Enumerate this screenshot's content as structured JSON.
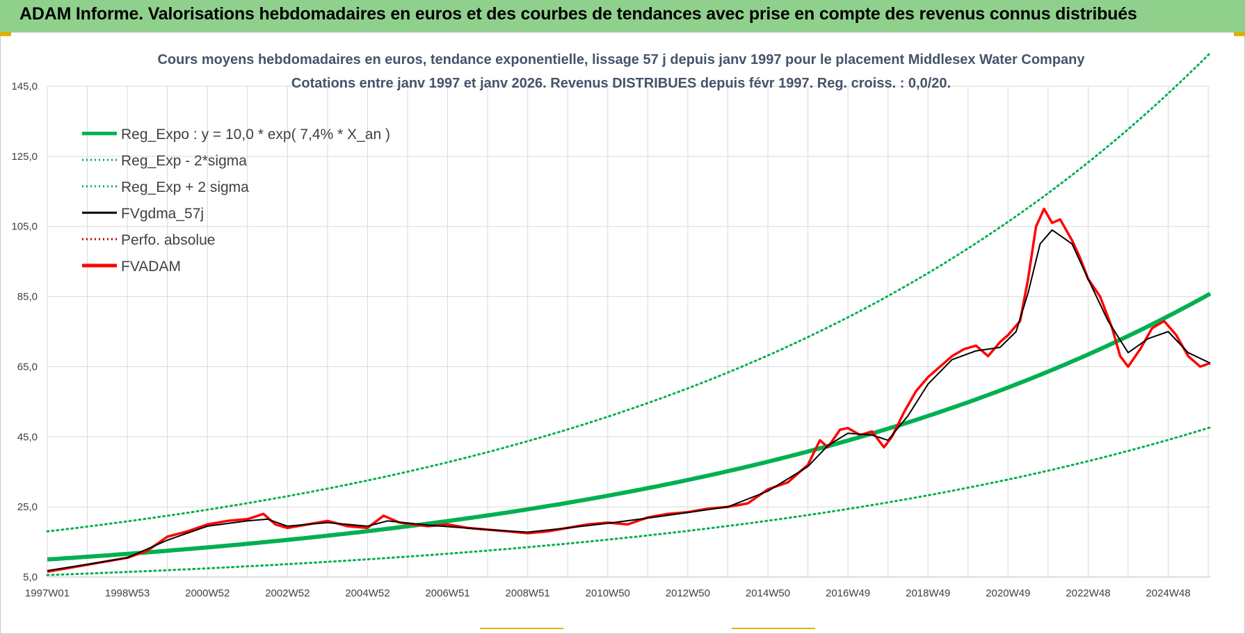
{
  "banner": {
    "title": "ADAM Informe. Valorisations hebdomadaires en euros et des courbes de tendances avec prise en compte des revenus connus distribués",
    "background": "#8fd18c"
  },
  "chart_data": {
    "type": "line",
    "title_line1": "Cours moyens hebdomadaires en euros, tendance exponentielle, lissage 57 j depuis janv 1997 pour le placement Middlesex Water Company",
    "title_line2": "Cotations entre janv 1997 et janv 2026. Revenus DISTRIBUES depuis févr 1997. Reg. croiss. : 0,0/20.",
    "xlabel": "",
    "ylabel": "",
    "x_range": [
      1997.0,
      2026.05
    ],
    "ylim": [
      5,
      145
    ],
    "y_ticks": [
      "5,0",
      "25,0",
      "45,0",
      "65,0",
      "85,0",
      "105,0",
      "125,0",
      "145,0"
    ],
    "x_tick_labels": [
      {
        "label": "1997W01",
        "x": 1997.0
      },
      {
        "label": "1998W53",
        "x": 1999.0
      },
      {
        "label": "2000W52",
        "x": 2001.0
      },
      {
        "label": "2002W52",
        "x": 2003.0
      },
      {
        "label": "2004W52",
        "x": 2005.0
      },
      {
        "label": "2006W51",
        "x": 2007.0
      },
      {
        "label": "2008W51",
        "x": 2009.0
      },
      {
        "label": "2010W50",
        "x": 2011.0
      },
      {
        "label": "2012W50",
        "x": 2013.0
      },
      {
        "label": "2014W50",
        "x": 2015.0
      },
      {
        "label": "2016W49",
        "x": 2017.0
      },
      {
        "label": "2018W49",
        "x": 2019.0
      },
      {
        "label": "2020W49",
        "x": 2021.0
      },
      {
        "label": "2022W48",
        "x": 2023.0
      },
      {
        "label": "2024W48",
        "x": 2025.0
      }
    ],
    "regression": {
      "coef": 10.0,
      "rate": 0.074,
      "start": 1997.0,
      "band_factor": 1.8
    },
    "legend": [
      {
        "label": "Reg_Expo : y = 10,0 * exp( 7,4% *  X_an )",
        "color": "#00b050",
        "style": "solid-thick"
      },
      {
        "label": "Reg_Exp - 2*sigma",
        "color": "#00b050",
        "style": "dotted"
      },
      {
        "label": "Reg_Exp + 2 sigma",
        "color": "#00b050",
        "style": "dotted"
      },
      {
        "label": "FVgdma_57j",
        "color": "#000000",
        "style": "solid"
      },
      {
        "label": "Perfo. absolue",
        "color": "#c00000",
        "style": "dotted"
      },
      {
        "label": "FVADAM",
        "color": "#ff0000",
        "style": "solid-thick"
      }
    ],
    "series": [
      {
        "name": "FVADAM",
        "color": "#ff0000",
        "points": [
          [
            1997.0,
            6.5
          ],
          [
            1997.5,
            7.5
          ],
          [
            1998.0,
            8.5
          ],
          [
            1998.5,
            9.5
          ],
          [
            1999.0,
            10.5
          ],
          [
            1999.5,
            12.5
          ],
          [
            2000.0,
            16.5
          ],
          [
            2000.5,
            18.0
          ],
          [
            2001.0,
            20.0
          ],
          [
            2001.5,
            21.0
          ],
          [
            2002.0,
            21.5
          ],
          [
            2002.4,
            23.0
          ],
          [
            2002.7,
            20.0
          ],
          [
            2003.0,
            19.0
          ],
          [
            2003.5,
            20.0
          ],
          [
            2004.0,
            21.0
          ],
          [
            2004.5,
            19.5
          ],
          [
            2005.0,
            19.0
          ],
          [
            2005.4,
            22.5
          ],
          [
            2005.8,
            20.5
          ],
          [
            2006.5,
            19.5
          ],
          [
            2007.0,
            20.0
          ],
          [
            2007.5,
            19.0
          ],
          [
            2008.0,
            18.5
          ],
          [
            2008.5,
            18.0
          ],
          [
            2009.0,
            17.5
          ],
          [
            2009.5,
            18.0
          ],
          [
            2010.0,
            19.0
          ],
          [
            2010.5,
            20.0
          ],
          [
            2011.0,
            20.5
          ],
          [
            2011.5,
            20.0
          ],
          [
            2012.0,
            22.0
          ],
          [
            2012.5,
            23.0
          ],
          [
            2013.0,
            23.5
          ],
          [
            2013.5,
            24.5
          ],
          [
            2014.0,
            25.0
          ],
          [
            2014.5,
            26.0
          ],
          [
            2015.0,
            30.0
          ],
          [
            2015.5,
            32.0
          ],
          [
            2016.0,
            37.0
          ],
          [
            2016.3,
            44.0
          ],
          [
            2016.5,
            42.0
          ],
          [
            2016.8,
            47.0
          ],
          [
            2017.0,
            47.5
          ],
          [
            2017.3,
            45.5
          ],
          [
            2017.6,
            46.5
          ],
          [
            2017.9,
            42.0
          ],
          [
            2018.1,
            45.0
          ],
          [
            2018.4,
            52.0
          ],
          [
            2018.7,
            58.0
          ],
          [
            2019.0,
            62.0
          ],
          [
            2019.3,
            65.0
          ],
          [
            2019.6,
            68.0
          ],
          [
            2019.9,
            70.0
          ],
          [
            2020.2,
            71.0
          ],
          [
            2020.5,
            68.0
          ],
          [
            2020.8,
            72.0
          ],
          [
            2021.0,
            74.0
          ],
          [
            2021.3,
            78.0
          ],
          [
            2021.5,
            90.0
          ],
          [
            2021.7,
            105.0
          ],
          [
            2021.9,
            110.0
          ],
          [
            2022.1,
            106.0
          ],
          [
            2022.3,
            107.0
          ],
          [
            2022.6,
            101.0
          ],
          [
            2022.8,
            96.0
          ],
          [
            2023.0,
            90.0
          ],
          [
            2023.3,
            85.0
          ],
          [
            2023.6,
            76.0
          ],
          [
            2023.8,
            68.0
          ],
          [
            2024.0,
            65.0
          ],
          [
            2024.3,
            70.0
          ],
          [
            2024.6,
            76.0
          ],
          [
            2024.9,
            78.0
          ],
          [
            2025.2,
            74.0
          ],
          [
            2025.5,
            68.0
          ],
          [
            2025.8,
            65.0
          ],
          [
            2026.05,
            66.0
          ]
        ]
      },
      {
        "name": "FVgdma_57j",
        "color": "#000000",
        "points": [
          [
            1997.0,
            6.8
          ],
          [
            1998.0,
            8.6
          ],
          [
            1999.0,
            10.5
          ],
          [
            2000.0,
            15.5
          ],
          [
            2001.0,
            19.5
          ],
          [
            2002.0,
            21.0
          ],
          [
            2002.5,
            21.5
          ],
          [
            2003.0,
            19.5
          ],
          [
            2004.0,
            20.5
          ],
          [
            2005.0,
            19.5
          ],
          [
            2005.5,
            21.0
          ],
          [
            2006.5,
            19.8
          ],
          [
            2008.0,
            18.5
          ],
          [
            2009.0,
            17.8
          ],
          [
            2010.0,
            19.0
          ],
          [
            2011.0,
            20.3
          ],
          [
            2012.0,
            21.8
          ],
          [
            2013.0,
            23.4
          ],
          [
            2014.0,
            25.0
          ],
          [
            2015.0,
            29.5
          ],
          [
            2016.0,
            36.5
          ],
          [
            2016.5,
            42.5
          ],
          [
            2017.0,
            46.0
          ],
          [
            2017.6,
            45.5
          ],
          [
            2018.0,
            44.0
          ],
          [
            2018.5,
            51.0
          ],
          [
            2019.0,
            60.0
          ],
          [
            2019.6,
            67.0
          ],
          [
            2020.2,
            69.5
          ],
          [
            2020.8,
            70.5
          ],
          [
            2021.2,
            75.0
          ],
          [
            2021.5,
            86.0
          ],
          [
            2021.8,
            100.0
          ],
          [
            2022.1,
            104.0
          ],
          [
            2022.6,
            100.0
          ],
          [
            2023.0,
            90.0
          ],
          [
            2023.5,
            78.0
          ],
          [
            2024.0,
            69.0
          ],
          [
            2024.5,
            73.0
          ],
          [
            2025.0,
            75.0
          ],
          [
            2025.5,
            69.0
          ],
          [
            2026.05,
            66.0
          ]
        ]
      }
    ],
    "colors": {
      "trend": "#00b050",
      "price": "#ff0000",
      "smooth": "#000000",
      "grid": "#d9d9d9",
      "title": "#44546a"
    }
  }
}
